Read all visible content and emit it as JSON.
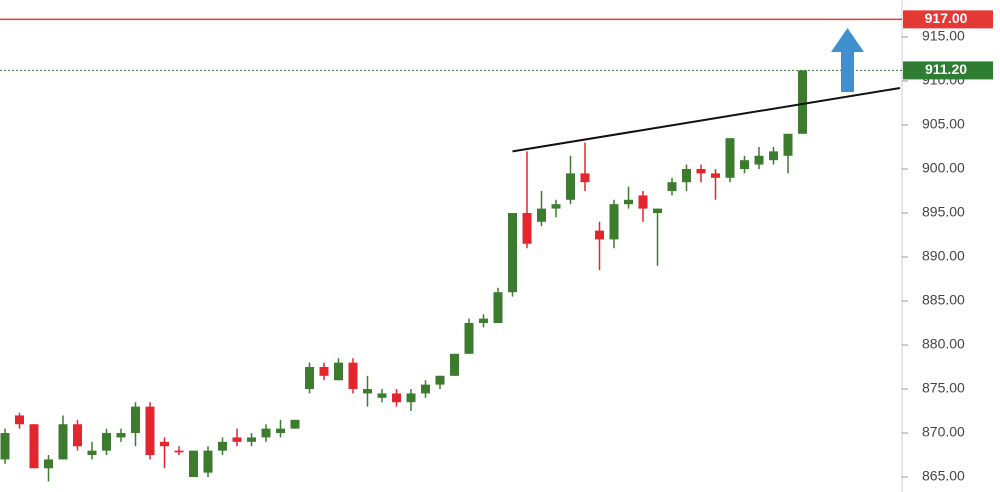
{
  "chart_data": {
    "type": "candlestick",
    "up_color": "#3d7b2f",
    "down_color": "#e3262d",
    "ylim": [
      863.3,
      919.2
    ],
    "yticks": [
      {
        "value": 865,
        "label": "865.00"
      },
      {
        "value": 870,
        "label": "870.00"
      },
      {
        "value": 875,
        "label": "875.00"
      },
      {
        "value": 880,
        "label": "880.00"
      },
      {
        "value": 885,
        "label": "885.00"
      },
      {
        "value": 890,
        "label": "890.00"
      },
      {
        "value": 895,
        "label": "895.00"
      },
      {
        "value": 900,
        "label": "900.00"
      },
      {
        "value": 905,
        "label": "905.00"
      },
      {
        "value": 910,
        "label": "910.00"
      },
      {
        "value": 915,
        "label": "915.00"
      }
    ],
    "open": [
      867,
      872,
      871,
      866,
      867,
      871,
      867.5,
      868,
      869.5,
      870,
      873,
      869,
      868,
      865,
      865.5,
      868,
      869.5,
      869,
      869.5,
      870,
      870.5,
      875,
      877.5,
      876,
      878,
      874.5,
      874,
      874.5,
      873.5,
      874.5,
      875.5,
      876.5,
      879,
      882.5,
      882.5,
      886,
      895,
      894,
      895.5,
      896.5,
      899.5,
      893,
      892,
      896,
      897,
      895,
      897.5,
      898.5,
      900,
      899.5,
      899,
      900,
      900.5,
      901,
      901.5,
      904
    ],
    "high": [
      870.5,
      872.3,
      871,
      867.5,
      872,
      871.5,
      869,
      870.5,
      870.5,
      873.5,
      873.5,
      869.5,
      868.5,
      868,
      868.5,
      869.5,
      870.5,
      870,
      871,
      871.5,
      871.5,
      878,
      878,
      878.5,
      878.5,
      876.5,
      875,
      875,
      875,
      876,
      876.5,
      879,
      883,
      883.5,
      886.5,
      895,
      902,
      897.5,
      896.5,
      901.5,
      903,
      894,
      896.5,
      898,
      897.5,
      895.5,
      899,
      900.5,
      900.5,
      900,
      903.5,
      901.5,
      902.5,
      902.5,
      904,
      911.2
    ],
    "low": [
      866.5,
      870.5,
      866,
      864.5,
      867,
      868,
      867,
      867.5,
      869,
      868.5,
      867,
      866,
      867.5,
      865,
      865,
      867.5,
      868.5,
      868.5,
      869,
      869.5,
      870.5,
      874.5,
      876,
      876,
      874.5,
      873,
      873.5,
      873,
      872.5,
      874,
      875,
      876.5,
      879,
      882,
      882.5,
      885.5,
      891,
      893.5,
      894.5,
      896,
      897.5,
      888.5,
      891,
      895.5,
      894,
      889,
      897,
      897.5,
      898.5,
      896.5,
      898.5,
      899.5,
      900,
      900.5,
      899.5,
      904
    ],
    "close": [
      870,
      871,
      866,
      867,
      871,
      868.5,
      868,
      870,
      870,
      873,
      867.5,
      868.5,
      867.8,
      868,
      868,
      869,
      869,
      869.5,
      870.5,
      870.5,
      871.5,
      877.5,
      876.5,
      878,
      875,
      875,
      874.5,
      873.5,
      874.5,
      875.5,
      876.5,
      879,
      882.5,
      883,
      886,
      895,
      891.5,
      895.5,
      896,
      899.5,
      898.5,
      892,
      896,
      896.5,
      895.5,
      895.5,
      898.5,
      900,
      899.5,
      899,
      903.5,
      901,
      901.5,
      902,
      904,
      911.2
    ],
    "trendline": [
      902,
      909.2
    ],
    "levels": [
      {
        "value": 917,
        "label": "917.00",
        "color": "#e53935",
        "style": "solid"
      },
      {
        "value": 911.2,
        "label": "911.20",
        "color": "#2e7d32",
        "style": "dotted"
      }
    ]
  }
}
